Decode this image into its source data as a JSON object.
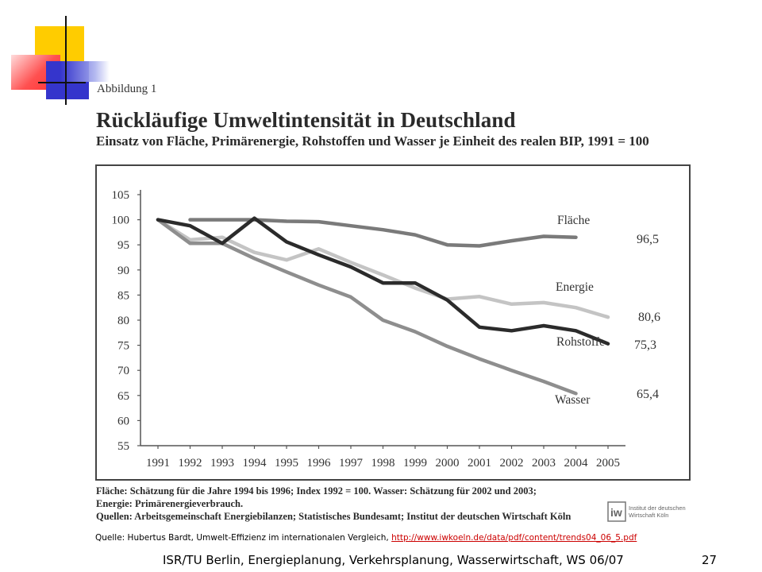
{
  "slide": {
    "figure_label": "Abbildung 1",
    "title": "Rückläufige Umweltintensität in Deutschland",
    "subtitle": "Einsatz von Fläche, Primärenergie, Rohstoffen und Wasser je Einheit des realen BIP, 1991 = 100",
    "note_line1": "Fläche: Schätzung für die Jahre 1994 bis 1996; Index 1992 = 100. Wasser: Schätzung für 2002 und 2003;",
    "note_line2": "Energie: Primärenergieverbrauch.",
    "note_line3": "Quellen: Arbeitsgemeinschaft Energiebilanzen; Statistisches Bundesamt; Institut der deutschen Wirtschaft Köln",
    "logo_line1": "Institut der deutschen",
    "logo_line2": "Wirtschaft Köln",
    "source_prefix": "Quelle: Hubertus Bardt, Umwelt-Effizienz im internationalen Vergleich,",
    "source_link": "http://www.iwkoeln.de/data/pdf/content/trends04_06_5.pdf",
    "footer": "ISR/TU Berlin, Energieplanung, Verkehrsplanung, Wasserwirtschaft, WS 06/07",
    "page_number": "27"
  },
  "colors": {
    "flaeche": "#7a7a7a",
    "energie": "#c4c4c4",
    "rohstoffe": "#2b2b2b",
    "wasser": "#8e8e8e",
    "deco_yellow": "#ffcc00",
    "deco_red": "#ff4040",
    "deco_blue": "#3333cc"
  },
  "chart_data": {
    "type": "line",
    "x": [
      "1991",
      "1992",
      "1993",
      "1994",
      "1995",
      "1996",
      "1997",
      "1998",
      "1999",
      "2000",
      "2001",
      "2002",
      "2003",
      "2004",
      "2005"
    ],
    "ylim": [
      55,
      105
    ],
    "yticks": [
      55,
      60,
      65,
      70,
      75,
      80,
      85,
      90,
      95,
      100,
      105
    ],
    "grid": false,
    "series": [
      {
        "name": "Fläche",
        "end_label": "96,5",
        "color_key": "flaeche",
        "width": 4.5,
        "values": [
          null,
          100,
          100,
          100,
          99.7,
          99.6,
          98.8,
          98,
          97,
          95,
          94.8,
          95.8,
          96.7,
          96.5,
          null
        ]
      },
      {
        "name": "Energie",
        "end_label": "80,6",
        "color_key": "energie",
        "width": 4.5,
        "values": [
          100,
          96,
          96.5,
          93.5,
          92,
          94.2,
          91.5,
          89,
          86.4,
          84.2,
          84.7,
          83.2,
          83.5,
          82.5,
          80.6
        ]
      },
      {
        "name": "Rohstoffe",
        "end_label": "75,3",
        "color_key": "rohstoffe",
        "width": 4.5,
        "values": [
          100,
          98.8,
          95.3,
          100.3,
          95.6,
          93,
          90.6,
          87.4,
          87.4,
          84,
          78.6,
          77.9,
          78.9,
          77.9,
          75.3
        ]
      },
      {
        "name": "Wasser",
        "end_label": "65,4",
        "color_key": "wasser",
        "width": 4.5,
        "values": [
          100,
          95.3,
          95.3,
          92.3,
          89.6,
          87,
          84.6,
          80,
          77.7,
          74.8,
          72.3,
          70,
          67.8,
          65.4,
          null
        ]
      }
    ]
  }
}
